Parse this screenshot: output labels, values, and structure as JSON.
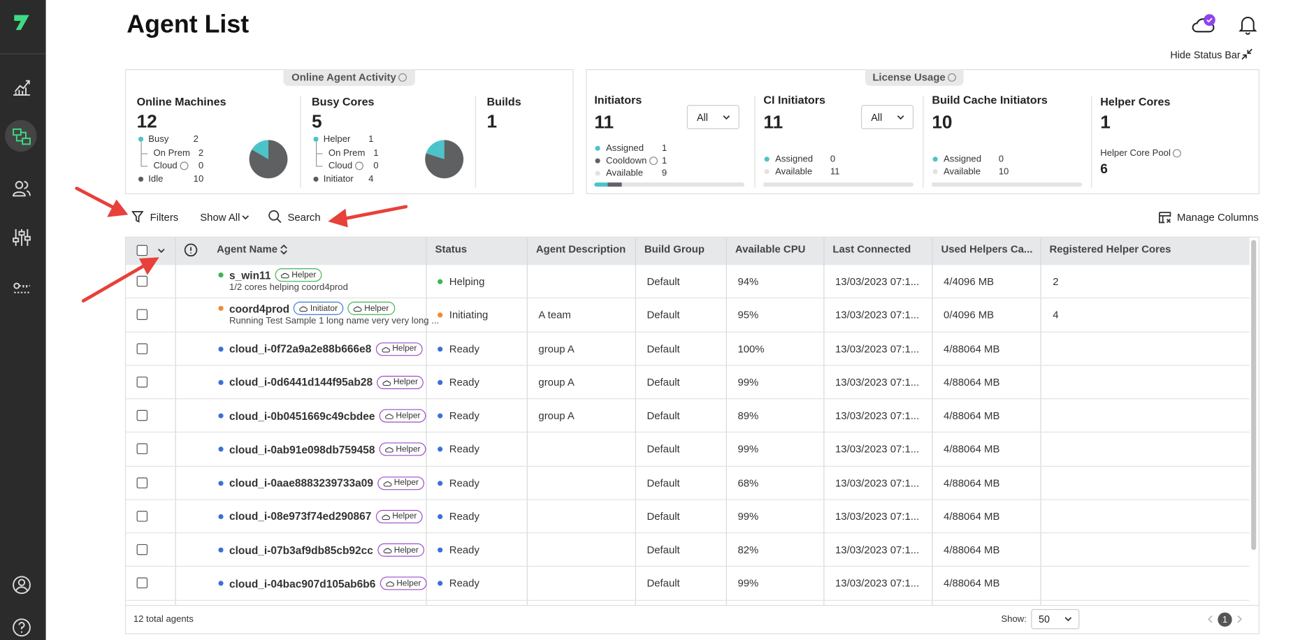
{
  "header": {
    "title": "Agent List",
    "hide_status_bar": "Hide Status Bar"
  },
  "online_activity": {
    "title": "Online Agent Activity",
    "online_machines": {
      "label": "Online Machines",
      "value": 12,
      "items": [
        {
          "label": "Busy",
          "value": 2
        },
        {
          "label": "On Prem",
          "value": 2
        },
        {
          "label": "Cloud",
          "value": 0
        },
        {
          "label": "Idle",
          "value": 10
        }
      ]
    },
    "busy_cores": {
      "label": "Busy Cores",
      "value": 5,
      "items": [
        {
          "label": "Helper",
          "value": 1
        },
        {
          "label": "On Prem",
          "value": 1
        },
        {
          "label": "Cloud",
          "value": 0
        },
        {
          "label": "Initiator",
          "value": 4
        }
      ]
    },
    "builds": {
      "label": "Builds",
      "value": 1
    }
  },
  "license_usage": {
    "title": "License Usage",
    "initiators": {
      "label": "Initiators",
      "value": 11,
      "filter": "All",
      "items": [
        {
          "label": "Assigned",
          "value": 1,
          "color": "#4cc3c9"
        },
        {
          "label": "Cooldown",
          "value": 1,
          "color": "#5f6368"
        },
        {
          "label": "Available",
          "value": 9,
          "color": "#e3e3e3"
        }
      ]
    },
    "ci_initiators": {
      "label": "CI Initiators",
      "value": 11,
      "filter": "All",
      "items": [
        {
          "label": "Assigned",
          "value": 0,
          "color": "#4cc3c9"
        },
        {
          "label": "Available",
          "value": 11,
          "color": "#e3e3e3"
        }
      ]
    },
    "build_cache_initiators": {
      "label": "Build Cache Initiators",
      "value": 10,
      "items": [
        {
          "label": "Assigned",
          "value": 0,
          "color": "#4cc3c9"
        },
        {
          "label": "Available",
          "value": 10,
          "color": "#e3e3e3"
        }
      ]
    },
    "helper_cores": {
      "label": "Helper Cores",
      "value": 1,
      "pool_label": "Helper Core Pool",
      "pool_value": 6
    }
  },
  "toolbar": {
    "filters": "Filters",
    "show": "Show All",
    "search": "Search",
    "manage_columns": "Manage Columns"
  },
  "table": {
    "columns": [
      "Agent Name",
      "Status",
      "Agent Description",
      "Build Group",
      "Available CPU",
      "Last Connected",
      "Used Helpers Ca...",
      "Registered Helper Cores"
    ],
    "rows": [
      {
        "name": "s_win11",
        "color": "#3cb552",
        "tags": [
          {
            "label": "Helper",
            "color": "#3cb552"
          }
        ],
        "subtitle": "1/2 cores helping coord4prod",
        "status": "Helping",
        "build_group": "Default",
        "cpu": "94%",
        "last_connected": "13/03/2023 07:1...",
        "used_helpers": "4/4096 MB",
        "registered_cores": "2"
      },
      {
        "name": "coord4prod",
        "color": "#f08a30",
        "tags": [
          {
            "label": "Initiator",
            "color": "#3a7bd5"
          },
          {
            "label": "Helper",
            "color": "#3cb552"
          }
        ],
        "subtitle": "Running Test Sample 1 long name very very long ...",
        "status": "Initiating",
        "description": "A team",
        "build_group": "Default",
        "cpu": "95%",
        "last_connected": "13/03/2023 07:1...",
        "used_helpers": "0/4096 MB",
        "registered_cores": "4"
      },
      {
        "name": "cloud_i-0f72a9a2e88b666e8",
        "color": "#3a6fd8",
        "tags": [
          {
            "label": "Helper",
            "color": "#9b4dca"
          }
        ],
        "status": "Ready",
        "description": "group A",
        "build_group": "Default",
        "cpu": "100%",
        "last_connected": "13/03/2023 07:1...",
        "used_helpers": "4/88064 MB"
      },
      {
        "name": "cloud_i-0d6441d144f95ab28",
        "color": "#3a6fd8",
        "tags": [
          {
            "label": "Helper",
            "color": "#9b4dca"
          }
        ],
        "status": "Ready",
        "description": "group A",
        "build_group": "Default",
        "cpu": "99%",
        "last_connected": "13/03/2023 07:1...",
        "used_helpers": "4/88064 MB"
      },
      {
        "name": "cloud_i-0b0451669c49cbdee",
        "color": "#3a6fd8",
        "tags": [
          {
            "label": "Helper",
            "color": "#9b4dca"
          }
        ],
        "status": "Ready",
        "description": "group A",
        "build_group": "Default",
        "cpu": "89%",
        "last_connected": "13/03/2023 07:1...",
        "used_helpers": "4/88064 MB"
      },
      {
        "name": "cloud_i-0ab91e098db759458",
        "color": "#3a6fd8",
        "tags": [
          {
            "label": "Helper",
            "color": "#9b4dca"
          }
        ],
        "status": "Ready",
        "build_group": "Default",
        "cpu": "99%",
        "last_connected": "13/03/2023 07:1...",
        "used_helpers": "4/88064 MB"
      },
      {
        "name": "cloud_i-0aae8883239733a09",
        "color": "#3a6fd8",
        "tags": [
          {
            "label": "Helper",
            "color": "#9b4dca"
          }
        ],
        "status": "Ready",
        "build_group": "Default",
        "cpu": "68%",
        "last_connected": "13/03/2023 07:1...",
        "used_helpers": "4/88064 MB"
      },
      {
        "name": "cloud_i-08e973f74ed290867",
        "color": "#3a6fd8",
        "tags": [
          {
            "label": "Helper",
            "color": "#9b4dca"
          }
        ],
        "status": "Ready",
        "build_group": "Default",
        "cpu": "99%",
        "last_connected": "13/03/2023 07:1...",
        "used_helpers": "4/88064 MB"
      },
      {
        "name": "cloud_i-07b3af9db85cb92cc",
        "color": "#3a6fd8",
        "tags": [
          {
            "label": "Helper",
            "color": "#9b4dca"
          }
        ],
        "status": "Ready",
        "build_group": "Default",
        "cpu": "82%",
        "last_connected": "13/03/2023 07:1...",
        "used_helpers": "4/88064 MB"
      },
      {
        "name": "cloud_i-04bac907d105ab6b6",
        "color": "#3a6fd8",
        "tags": [
          {
            "label": "Helper",
            "color": "#9b4dca"
          }
        ],
        "status": "Ready",
        "build_group": "Default",
        "cpu": "99%",
        "last_connected": "13/03/2023 07:1...",
        "used_helpers": "4/88064 MB"
      }
    ]
  },
  "footer": {
    "total": "12 total agents",
    "show_label": "Show:",
    "page_size": 50,
    "page": 1
  }
}
